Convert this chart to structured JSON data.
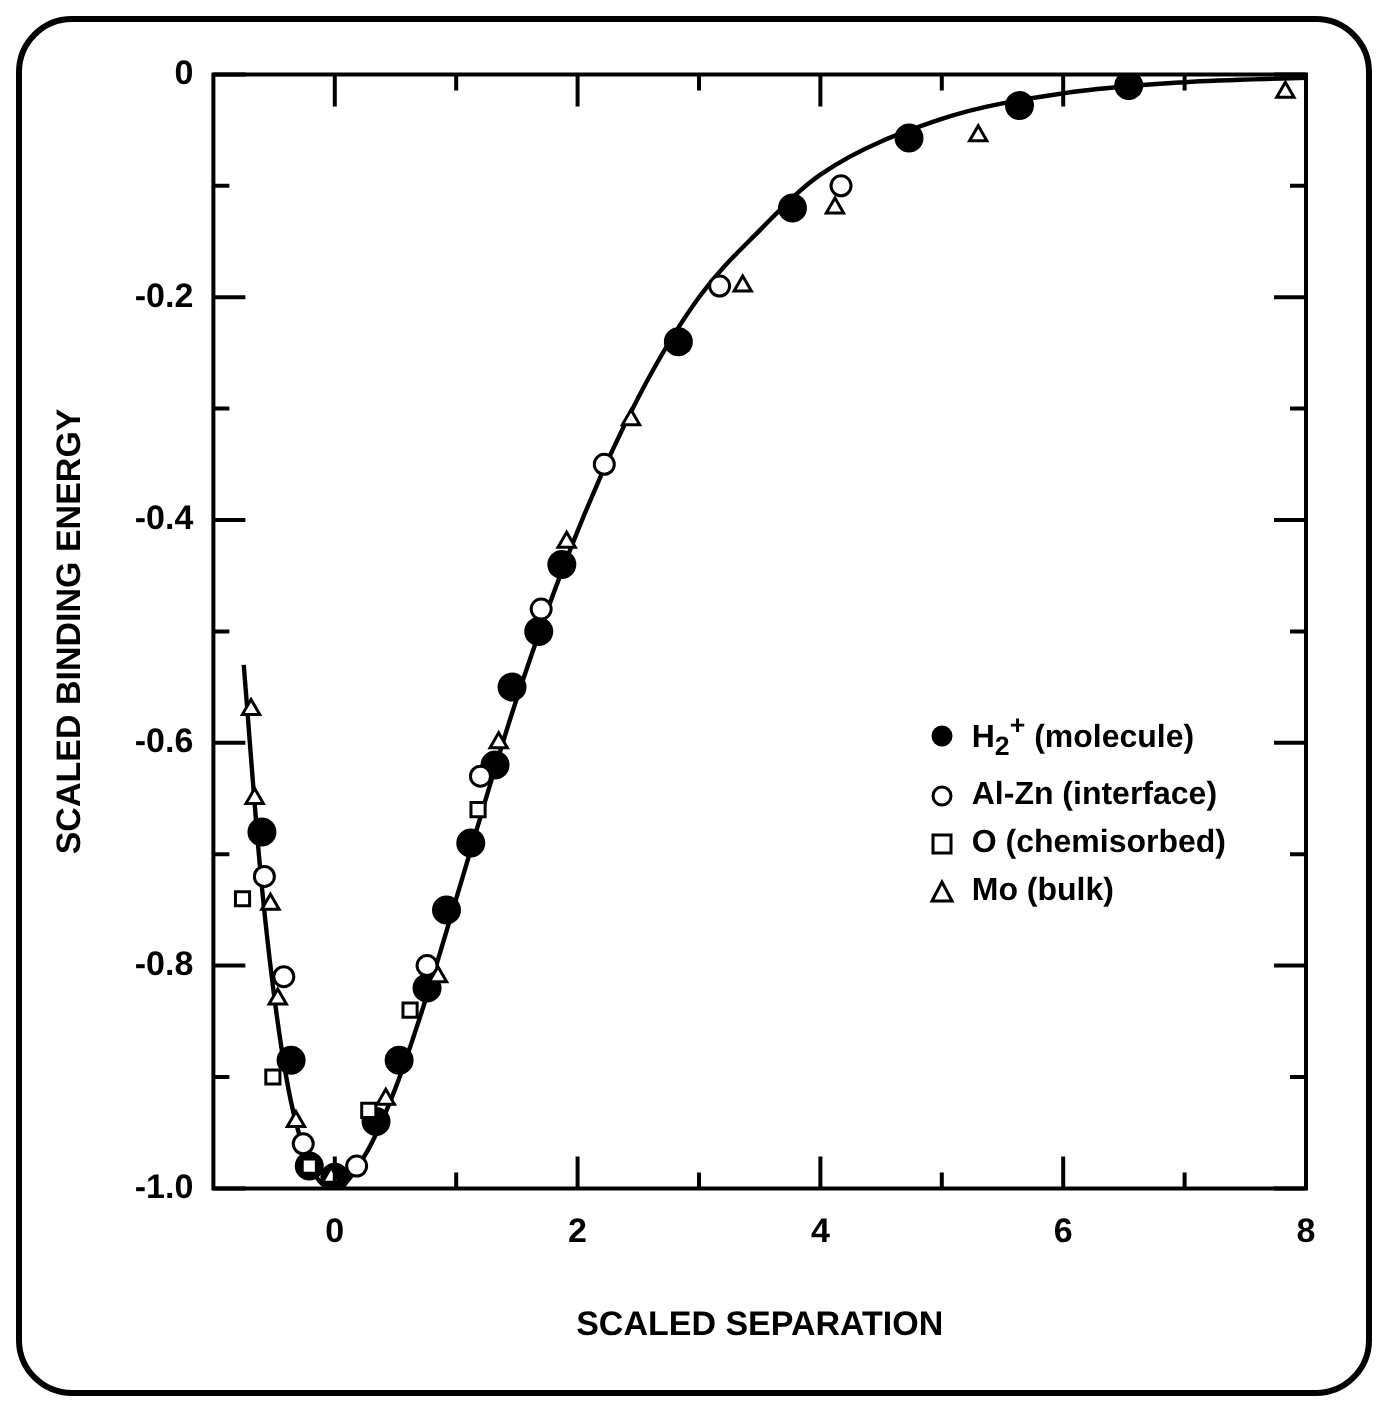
{
  "chart_data": {
    "type": "scatter",
    "xlabel": "SCALED SEPARATION",
    "ylabel": "SCALED BINDING ENERGY",
    "xlim": [
      -1,
      8
    ],
    "ylim": [
      -1,
      0
    ],
    "xticks": [
      0,
      {
        "value": 1,
        "label": null
      },
      2,
      {
        "value": 3,
        "label": null
      },
      4,
      {
        "value": 5,
        "label": null
      },
      6,
      {
        "value": 7,
        "label": null
      },
      8
    ],
    "yticks": [
      {
        "value": -1,
        "label": "-1.0"
      },
      {
        "value": -0.9,
        "label": null
      },
      -0.8,
      {
        "value": -0.7,
        "label": null
      },
      -0.6,
      {
        "value": -0.5,
        "label": null
      },
      -0.4,
      {
        "value": -0.3,
        "label": null
      },
      -0.2,
      {
        "value": -0.1,
        "label": null
      },
      0
    ],
    "grid": false,
    "legend": "right",
    "marker": "circle",
    "series": [
      {
        "type": "line",
        "color": "#000000",
        "marker": "none",
        "x": [
          -0.75,
          -0.6,
          -0.4,
          -0.2,
          0,
          0.25,
          0.5,
          0.75,
          1,
          1.5,
          2,
          2.5,
          3,
          3.5,
          4,
          5,
          6,
          7,
          8
        ],
        "values": [
          -0.53,
          -0.73,
          -0.9,
          -0.98,
          -1,
          -0.97,
          -0.91,
          -0.83,
          -0.74,
          -0.56,
          -0.41,
          -0.29,
          -0.2,
          -0.14,
          -0.09,
          -0.04,
          -0.017,
          -0.007,
          -0.003
        ]
      },
      {
        "name": "H$_{2}$$^{+}$ (molecule)",
        "color": "#000000",
        "x": [
          -0.6,
          -0.36,
          -0.21,
          0,
          0.34,
          0.53,
          0.76,
          0.92,
          1.12,
          1.32,
          1.46,
          1.68,
          1.87,
          2.83,
          3.77,
          4.73,
          5.64,
          6.54
        ],
        "values": [
          -0.68,
          -0.885,
          -0.98,
          -0.99,
          -0.94,
          -0.885,
          -0.82,
          -0.75,
          -0.69,
          -0.62,
          -0.55,
          -0.5,
          -0.44,
          -0.24,
          -0.12,
          -0.057,
          -0.028,
          -0.01
        ]
      },
      {
        "name": "Al-Zn (interface)",
        "color": "#000000",
        "x": [
          -0.58,
          -0.42,
          -0.26,
          0.18,
          0.76,
          1.2,
          1.7,
          2.22,
          3.17,
          4.17
        ],
        "values": [
          -0.72,
          -0.81,
          -0.96,
          -0.98,
          -0.8,
          -0.63,
          -0.48,
          -0.35,
          -0.19,
          -0.1
        ]
      },
      {
        "name": "O (chemisorbed)",
        "color": "#000000",
        "marker": "square",
        "x": [
          -0.76,
          -0.51,
          -0.21,
          0.28,
          0.62,
          1.18
        ],
        "values": [
          -0.74,
          -0.9,
          -0.98,
          -0.93,
          -0.84,
          -0.66
        ]
      },
      {
        "name": "Mo (bulk)",
        "color": "#000000",
        "marker": "triangle",
        "x": [
          -0.69,
          -0.66,
          -0.53,
          -0.47,
          -0.32,
          -0.03,
          0.42,
          0.85,
          1.35,
          1.91,
          2.44,
          3.36,
          4.12,
          5.3,
          7.83
        ],
        "values": [
          -0.57,
          -0.65,
          -0.745,
          -0.83,
          -0.94,
          -0.99,
          -0.92,
          -0.81,
          -0.6,
          -0.42,
          -0.31,
          -0.19,
          -0.12,
          -0.055,
          -0.016
        ]
      }
    ]
  }
}
